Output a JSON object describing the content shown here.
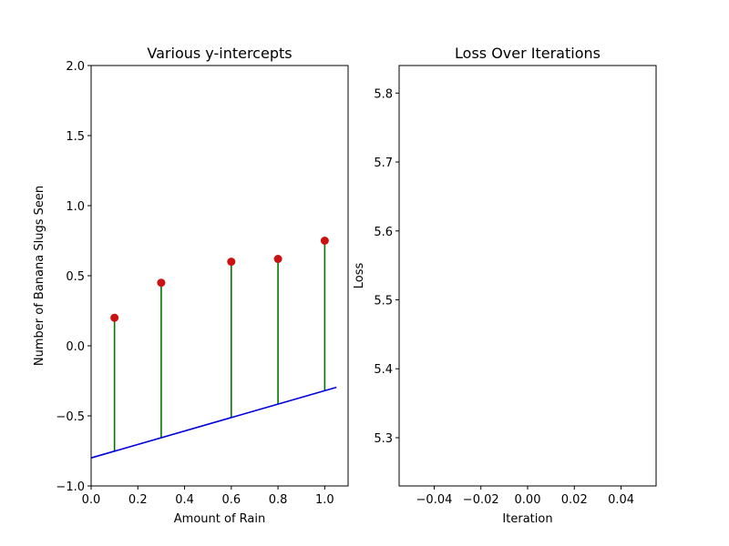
{
  "chart_data": [
    {
      "type": "scatter",
      "title": "Various y-intercepts",
      "xlabel": "Amount of Rain",
      "ylabel": "Number of Banana Slugs Seen",
      "xlim": [
        0.0,
        1.1
      ],
      "ylim": [
        -1.0,
        2.0
      ],
      "xticks": [
        "0.0",
        "0.2",
        "0.4",
        "0.6",
        "0.8",
        "1.0"
      ],
      "yticks": [
        "−1.0",
        "−0.5",
        "0.0",
        "0.5",
        "1.0",
        "1.5",
        "2.0"
      ],
      "points": {
        "x": [
          0.1,
          0.3,
          0.6,
          0.8,
          1.0
        ],
        "y": [
          0.2,
          0.45,
          0.6,
          0.62,
          0.75
        ],
        "color": "#cc1111"
      },
      "fit_line": {
        "slope": 0.48,
        "intercept": -0.8,
        "x_range": [
          0.0,
          1.05
        ],
        "color": "#0000dd"
      },
      "residual_color": "#007700",
      "grid": false
    },
    {
      "type": "line",
      "title": "Loss Over Iterations",
      "xlabel": "Iteration",
      "ylabel": "Loss",
      "xlim": [
        -0.055,
        0.055
      ],
      "ylim": [
        5.23,
        5.84
      ],
      "xticks": [
        "−0.04",
        "−0.02",
        "0.00",
        "0.02",
        "0.04"
      ],
      "yticks": [
        "5.3",
        "5.4",
        "5.5",
        "5.6",
        "5.7",
        "5.8"
      ],
      "series": [],
      "grid": false
    }
  ]
}
